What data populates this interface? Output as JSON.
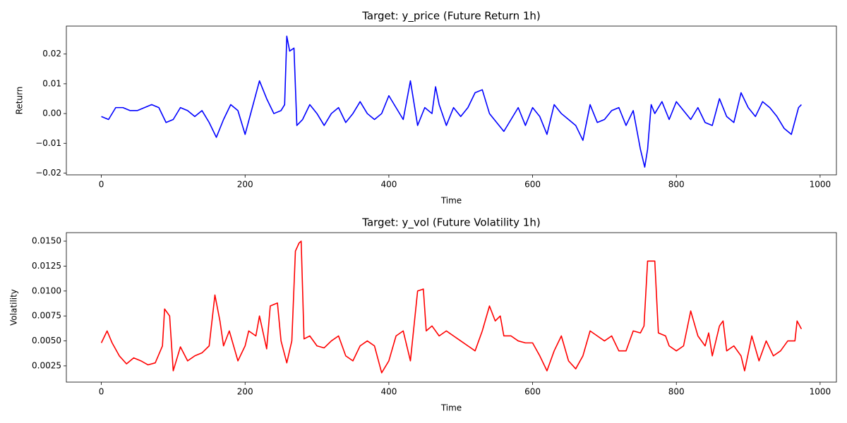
{
  "chart_data": [
    {
      "type": "line",
      "title": "Target: y_price (Future Return 1h)",
      "x_label": "Time",
      "y_label": "Return",
      "color": "#0000ff",
      "x": [
        0,
        10,
        20,
        30,
        40,
        50,
        60,
        70,
        80,
        90,
        100,
        110,
        120,
        130,
        140,
        150,
        160,
        170,
        180,
        190,
        200,
        210,
        220,
        230,
        240,
        250,
        255,
        258,
        262,
        268,
        272,
        280,
        290,
        300,
        310,
        320,
        330,
        340,
        350,
        360,
        370,
        380,
        390,
        400,
        410,
        420,
        430,
        440,
        450,
        460,
        465,
        470,
        480,
        490,
        500,
        510,
        520,
        530,
        540,
        550,
        560,
        570,
        580,
        590,
        600,
        610,
        620,
        630,
        640,
        650,
        660,
        670,
        680,
        690,
        700,
        710,
        720,
        730,
        740,
        750,
        756,
        760,
        765,
        770,
        780,
        790,
        800,
        810,
        820,
        830,
        840,
        850,
        860,
        870,
        880,
        890,
        900,
        910,
        920,
        930,
        940,
        950,
        960,
        970,
        974
      ],
      "values": [
        -0.001,
        -0.002,
        0.002,
        0.002,
        0.001,
        0.001,
        0.002,
        0.003,
        0.002,
        -0.003,
        -0.002,
        0.002,
        0.001,
        -0.001,
        0.001,
        -0.003,
        -0.008,
        -0.002,
        0.003,
        0.001,
        -0.007,
        0.002,
        0.011,
        0.005,
        0.0,
        0.001,
        0.003,
        0.026,
        0.021,
        0.022,
        -0.004,
        -0.002,
        0.003,
        0.0,
        -0.004,
        0.0,
        0.002,
        -0.003,
        0.0,
        0.004,
        0.0,
        -0.002,
        0.0,
        0.006,
        0.002,
        -0.002,
        0.011,
        -0.004,
        0.002,
        0.0,
        0.009,
        0.003,
        -0.004,
        0.002,
        -0.001,
        0.002,
        0.007,
        0.008,
        0.0,
        -0.003,
        -0.006,
        -0.002,
        0.002,
        -0.004,
        0.002,
        -0.001,
        -0.007,
        0.003,
        0.0,
        -0.002,
        -0.004,
        -0.009,
        0.003,
        -0.003,
        -0.002,
        0.001,
        0.002,
        -0.004,
        0.001,
        -0.012,
        -0.018,
        -0.012,
        0.003,
        0.0,
        0.004,
        -0.002,
        0.004,
        0.001,
        -0.002,
        0.002,
        -0.003,
        -0.004,
        0.005,
        -0.001,
        -0.003,
        0.007,
        0.002,
        -0.001,
        0.004,
        0.002,
        -0.001,
        -0.005,
        -0.007,
        0.002,
        0.003
      ],
      "xlim": [
        -48.7,
        1022.7
      ],
      "ylim": [
        -0.0206,
        0.0294
      ],
      "xticks": [
        0,
        200,
        400,
        600,
        800,
        1000
      ],
      "yticks": [
        {
          "value": -0.02,
          "label": "−0.02"
        },
        {
          "value": -0.01,
          "label": "−0.01"
        },
        {
          "value": 0,
          "label": "0.00"
        },
        {
          "value": 0.01,
          "label": "0.01"
        },
        {
          "value": 0.02,
          "label": "0.02"
        }
      ]
    },
    {
      "type": "line",
      "title": "Target: y_vol (Future Volatility 1h)",
      "x_label": "Time",
      "y_label": "Volatility",
      "color": "#ff0000",
      "x": [
        0,
        8,
        15,
        25,
        35,
        45,
        55,
        65,
        75,
        85,
        88,
        95,
        100,
        110,
        120,
        130,
        140,
        150,
        158,
        165,
        170,
        178,
        190,
        200,
        205,
        215,
        220,
        230,
        235,
        245,
        250,
        258,
        265,
        270,
        275,
        278,
        282,
        290,
        300,
        310,
        320,
        330,
        340,
        350,
        360,
        370,
        380,
        390,
        400,
        410,
        420,
        430,
        440,
        448,
        452,
        460,
        470,
        480,
        490,
        500,
        510,
        520,
        530,
        540,
        548,
        555,
        560,
        570,
        580,
        590,
        600,
        610,
        620,
        630,
        640,
        650,
        660,
        670,
        680,
        690,
        700,
        710,
        720,
        730,
        740,
        750,
        755,
        760,
        770,
        775,
        785,
        790,
        800,
        810,
        820,
        830,
        840,
        845,
        850,
        860,
        865,
        870,
        880,
        890,
        895,
        905,
        915,
        925,
        935,
        945,
        955,
        965,
        968,
        974
      ],
      "values": [
        0.0048,
        0.006,
        0.0048,
        0.0035,
        0.0027,
        0.0033,
        0.003,
        0.0026,
        0.0028,
        0.0045,
        0.0082,
        0.0075,
        0.002,
        0.0044,
        0.003,
        0.0035,
        0.0038,
        0.0045,
        0.0096,
        0.007,
        0.0045,
        0.006,
        0.003,
        0.0045,
        0.006,
        0.0055,
        0.0075,
        0.0042,
        0.0085,
        0.0088,
        0.005,
        0.0028,
        0.005,
        0.014,
        0.0148,
        0.015,
        0.0052,
        0.0055,
        0.0045,
        0.0043,
        0.005,
        0.0055,
        0.0035,
        0.003,
        0.0045,
        0.005,
        0.0045,
        0.0018,
        0.003,
        0.0055,
        0.006,
        0.003,
        0.01,
        0.0102,
        0.006,
        0.0065,
        0.0055,
        0.006,
        0.0055,
        0.005,
        0.0045,
        0.004,
        0.006,
        0.0085,
        0.007,
        0.0075,
        0.0055,
        0.0055,
        0.005,
        0.0048,
        0.0048,
        0.0035,
        0.002,
        0.004,
        0.0055,
        0.003,
        0.0022,
        0.0035,
        0.006,
        0.0055,
        0.005,
        0.0055,
        0.004,
        0.004,
        0.006,
        0.0058,
        0.0065,
        0.013,
        0.013,
        0.0058,
        0.0055,
        0.0045,
        0.004,
        0.0045,
        0.008,
        0.0055,
        0.0045,
        0.0058,
        0.0035,
        0.0065,
        0.007,
        0.004,
        0.0045,
        0.0035,
        0.002,
        0.0055,
        0.003,
        0.005,
        0.0035,
        0.004,
        0.005,
        0.005,
        0.007,
        0.0062
      ],
      "xlim": [
        -48.7,
        1022.7
      ],
      "ylim": [
        0.00087,
        0.01585
      ],
      "xticks": [
        0,
        200,
        400,
        600,
        800,
        1000
      ],
      "yticks": [
        {
          "value": 0.0025,
          "label": "0.0025"
        },
        {
          "value": 0.005,
          "label": "0.0050"
        },
        {
          "value": 0.0075,
          "label": "0.0075"
        },
        {
          "value": 0.01,
          "label": "0.0100"
        },
        {
          "value": 0.0125,
          "label": "0.0125"
        },
        {
          "value": 0.015,
          "label": "0.0150"
        }
      ]
    }
  ]
}
